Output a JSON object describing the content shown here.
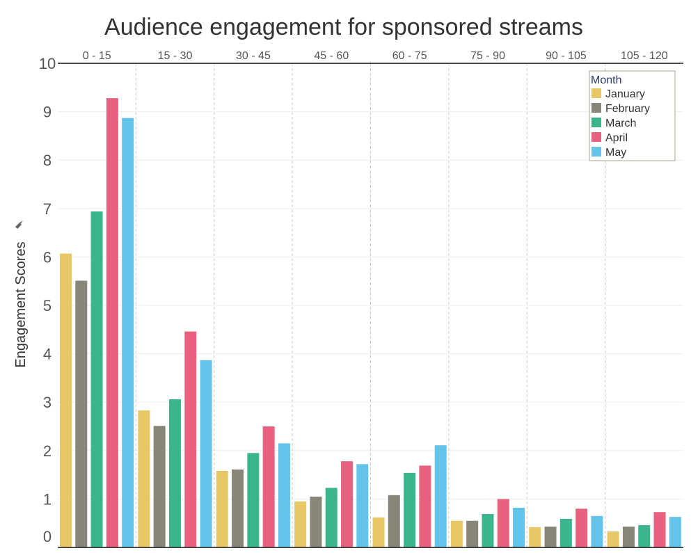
{
  "chart_data": {
    "type": "bar",
    "title": "Audience engagement for sponsored streams",
    "xlabel": "",
    "ylabel": "Engagement Scores",
    "ylim": [
      0,
      10
    ],
    "yticks": [
      "0",
      "1",
      "2",
      "3",
      "4",
      "5",
      "6",
      "7",
      "8",
      "9",
      "10"
    ],
    "categories": [
      "0 - 15",
      "15 - 30",
      "30 - 45",
      "45 - 60",
      "60 - 75",
      "75 - 90",
      "90 - 105",
      "105 - 120"
    ],
    "legend": {
      "title": "Month",
      "position": "top-right"
    },
    "series": [
      {
        "name": "January",
        "color": "#e8c766",
        "values": [
          6.07,
          2.83,
          1.58,
          0.95,
          0.62,
          0.55,
          0.42,
          0.33
        ]
      },
      {
        "name": "February",
        "color": "#878678",
        "values": [
          5.51,
          2.51,
          1.61,
          1.05,
          1.08,
          0.55,
          0.43,
          0.43
        ]
      },
      {
        "name": "March",
        "color": "#3bb68c",
        "values": [
          6.94,
          3.06,
          1.95,
          1.23,
          1.54,
          0.69,
          0.59,
          0.46
        ]
      },
      {
        "name": "April",
        "color": "#e8627f",
        "values": [
          9.28,
          4.46,
          2.5,
          1.78,
          1.69,
          1.0,
          0.8,
          0.73
        ]
      },
      {
        "name": "May",
        "color": "#63c3e8",
        "values": [
          8.87,
          3.87,
          2.15,
          1.72,
          2.11,
          0.82,
          0.65,
          0.63
        ]
      }
    ]
  }
}
